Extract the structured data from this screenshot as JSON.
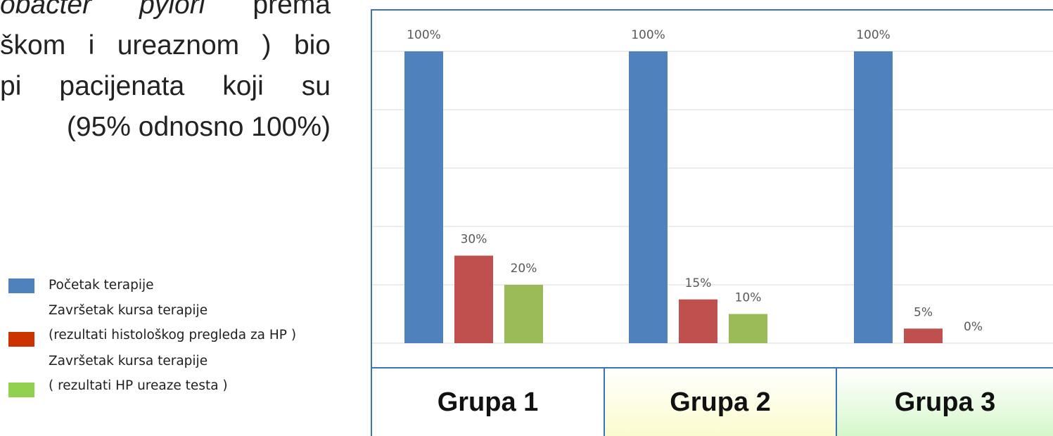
{
  "slide_text": {
    "lines": [
      {
        "pre": "",
        "italic": "obacter pylori",
        "post": " prema"
      },
      {
        "pre": "škom i ureaznom ) bio",
        "italic": "",
        "post": ""
      },
      {
        "pre": "pi pacijenata koji su",
        "italic": "",
        "post": ""
      },
      {
        "pre": "(95% odnosno 100%)",
        "italic": "",
        "post": ""
      }
    ]
  },
  "legend": [
    {
      "lines": [
        "Početak terapije"
      ],
      "color": "#4f81bd"
    },
    {
      "lines": [
        "Završetak kursa terapije",
        "(rezultati histološkog pregleda za HP )"
      ],
      "color": "#cc3300"
    },
    {
      "lines": [
        "Završetak kursa terapije",
        "( rezultati HP ureaze testa )"
      ],
      "color": "#92d050"
    }
  ],
  "chart_data": {
    "type": "bar",
    "categories": [
      "Grupa 1",
      "Grupa 2",
      "Grupa 3"
    ],
    "series": [
      {
        "values": [
          100,
          100,
          100
        ],
        "labels": [
          "100%",
          "100%",
          "100%"
        ],
        "color": "#4f81bd"
      },
      {
        "values": [
          30,
          15,
          5
        ],
        "labels": [
          "30%",
          "15%",
          "5%"
        ],
        "color": "#c0504d"
      },
      {
        "values": [
          20,
          10,
          0
        ],
        "labels": [
          "20%",
          "10%",
          "0%"
        ],
        "color": "#9bbb59"
      }
    ],
    "ylim": [
      0,
      100
    ],
    "grid": true,
    "gridline_color": "#d9d9d9",
    "label_color": "#595959"
  },
  "groups": {
    "g1": "Grupa 1",
    "g2": "Grupa 2",
    "g3": "Grupa 3"
  }
}
